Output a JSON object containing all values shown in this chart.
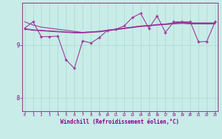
{
  "background_color": "#c8ece8",
  "line_color": "#993399",
  "hours": [
    0,
    1,
    2,
    3,
    4,
    5,
    6,
    7,
    8,
    9,
    10,
    11,
    12,
    13,
    14,
    15,
    16,
    17,
    18,
    19,
    20,
    21,
    22,
    23
  ],
  "wc_vals": [
    9.32,
    9.44,
    9.16,
    9.16,
    9.17,
    8.72,
    8.56,
    9.08,
    9.04,
    9.14,
    9.28,
    9.3,
    9.36,
    9.52,
    9.6,
    9.32,
    9.55,
    9.24,
    9.44,
    9.44,
    9.44,
    9.06,
    9.07,
    9.44
  ],
  "temp_vals": [
    9.44,
    9.38,
    9.34,
    9.32,
    9.3,
    9.28,
    9.26,
    9.24,
    9.25,
    9.26,
    9.28,
    9.3,
    9.32,
    9.34,
    9.36,
    9.37,
    9.38,
    9.39,
    9.4,
    9.41,
    9.4,
    9.4,
    9.4,
    9.4
  ],
  "avg_vals": [
    9.3,
    9.28,
    9.27,
    9.26,
    9.25,
    9.24,
    9.23,
    9.23,
    9.24,
    9.25,
    9.27,
    9.29,
    9.31,
    9.33,
    9.35,
    9.36,
    9.38,
    9.39,
    9.41,
    9.42,
    9.41,
    9.41,
    9.41,
    9.41
  ],
  "avg2_vals": [
    9.31,
    9.29,
    9.28,
    9.27,
    9.26,
    9.25,
    9.24,
    9.24,
    9.25,
    9.26,
    9.28,
    9.3,
    9.32,
    9.34,
    9.36,
    9.37,
    9.39,
    9.4,
    9.42,
    9.43,
    9.42,
    9.42,
    9.42,
    9.42
  ],
  "ylim": [
    7.75,
    9.8
  ],
  "ytick_vals": [
    8.0,
    9.0
  ],
  "ytick_labels": [
    "8",
    "9"
  ],
  "xlabel": "Windchill (Refroidissement éolien,°C)",
  "grid_color": "#a8d8cc",
  "font_color": "#880088",
  "spine_color": "#884488"
}
